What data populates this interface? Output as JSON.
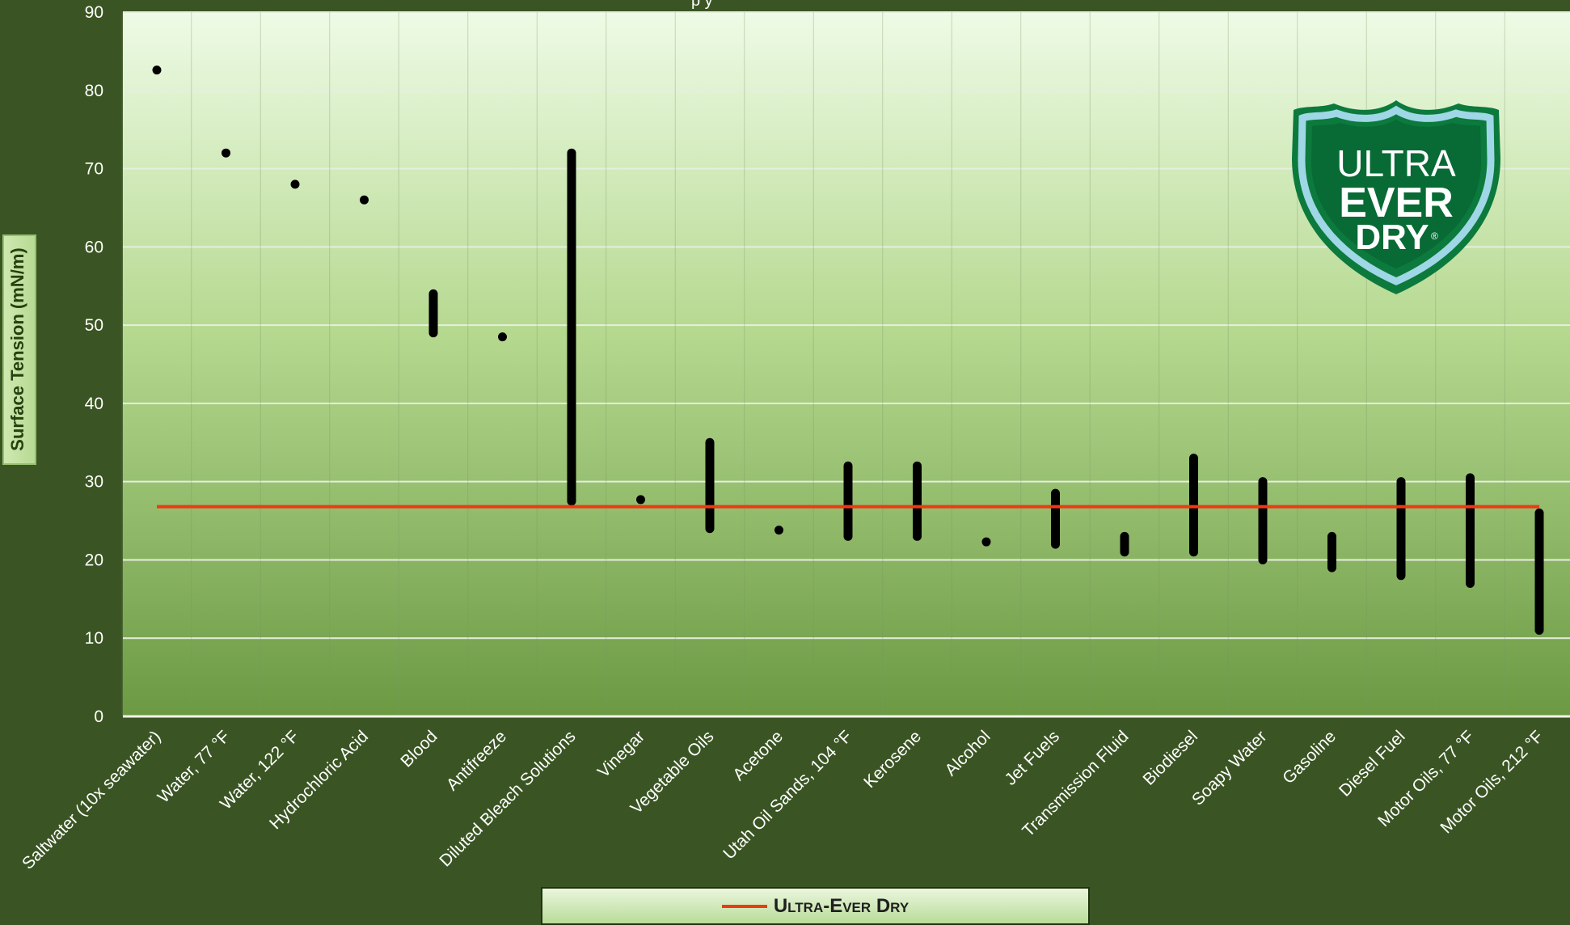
{
  "chart_data": {
    "type": "range",
    "title": "",
    "title_fragment": "p  y",
    "xlabel": "",
    "ylabel": "Surface Tension (mN/m)",
    "ylim": [
      0,
      90
    ],
    "yticks": [
      0,
      10,
      20,
      30,
      40,
      50,
      60,
      70,
      80,
      90
    ],
    "grid": true,
    "legend_position": "bottom",
    "categories": [
      "Saltwater (10x seawater)",
      "Water, 77 °F",
      "Water, 122 °F",
      "Hydrochloric Acid",
      "Blood",
      "Antifreeze",
      "Diluted Bleach Solutions",
      "Vinegar",
      "Vegetable Oils",
      "Acetone",
      "Utah Oil Sands, 104 °F",
      "Kerosene",
      "Alcohol",
      "Jet Fuels",
      "Transmission Fluid",
      "Biodiesel",
      "Soapy Water",
      "Gasoline",
      "Diesel Fuel",
      "Motor Oils, 77 °F",
      "Motor Oils, 212 °F"
    ],
    "ranges": [
      [
        82.6,
        82.6
      ],
      [
        72.0,
        72.0
      ],
      [
        68.0,
        68.0
      ],
      [
        66.0,
        66.0
      ],
      [
        49.0,
        54.0
      ],
      [
        48.5,
        48.5
      ],
      [
        27.5,
        72.0
      ],
      [
        27.7,
        27.7
      ],
      [
        24.0,
        35.0
      ],
      [
        23.8,
        23.8
      ],
      [
        23.0,
        32.0
      ],
      [
        23.0,
        32.0
      ],
      [
        22.3,
        22.3
      ],
      [
        22.0,
        28.5
      ],
      [
        21.0,
        23.0
      ],
      [
        21.0,
        33.0
      ],
      [
        20.0,
        30.0
      ],
      [
        19.0,
        23.0
      ],
      [
        18.0,
        30.0
      ],
      [
        17.0,
        30.5
      ],
      [
        11.0,
        26.0
      ]
    ],
    "series": [
      {
        "name": "Ultra-Ever Dry",
        "type": "line",
        "value": 26.8,
        "color": "#ee3a12"
      }
    ],
    "colors": {
      "bars": "#000000",
      "reference_line": "#ee3a12",
      "background": "#3a5523",
      "plot_top": "#eefbe6",
      "plot_bottom": "#6b9a43"
    }
  },
  "logo": {
    "line1": "ULTRA",
    "line2": "EVER",
    "line3": "DRY",
    "mark": "®"
  }
}
